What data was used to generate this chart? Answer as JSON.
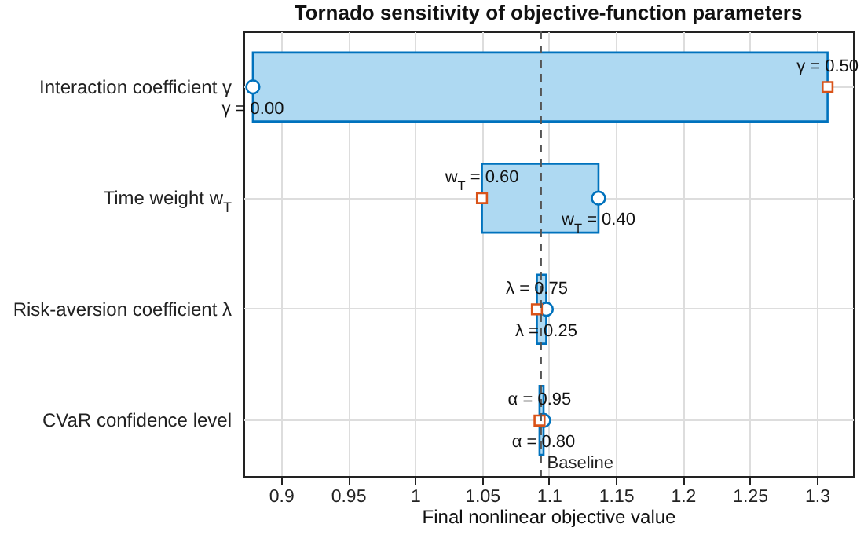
{
  "chart_data": {
    "type": "bar",
    "orientation": "horizontal",
    "title": "Tornado sensitivity of objective-function parameters",
    "xlabel": "Final nonlinear objective value",
    "categories": [
      "Interaction coefficient γ",
      "Time weight w$_{T}$",
      "Risk-aversion coefficient λ",
      "CVaR confidence level"
    ],
    "series": [
      {
        "color": "#aed9f2",
        "base": [
          0.879,
          1.05,
          1.091,
          1.093
        ],
        "values": [
          0.429,
          0.087,
          0.007,
          0.003
        ]
      },
      {
        "type": "scatter",
        "marker": "circle",
        "color": "#0072bd",
        "x": [
          "Interaction coefficient γ",
          "Time weight w$_{T}$",
          "Risk-aversion coefficient λ",
          "CVaR confidence level"
        ],
        "values": [
          0.879,
          1.137,
          1.098,
          1.096
        ]
      },
      {
        "type": "scatter",
        "marker": "square",
        "color": "#d95319",
        "x": [
          "Interaction coefficient γ",
          "Time weight w$_{T}$",
          "Risk-aversion coefficient λ",
          "CVaR confidence level"
        ],
        "values": [
          1.308,
          1.05,
          1.091,
          1.093
        ]
      }
    ],
    "xlim": [
      0.872,
      1.327
    ],
    "xticks": [
      0.9,
      0.95,
      1,
      1.05,
      1.1,
      1.15,
      1.2,
      1.25,
      1.3
    ],
    "ref_lines": [
      {
        "axis": "x",
        "value": 1.094,
        "label": "Baseline",
        "color": "#555555",
        "line_style": "dashed"
      }
    ],
    "annotations": [
      {
        "text": "γ = 0.00",
        "x": 0.879,
        "y": "Interaction coefficient γ"
      },
      {
        "text": "γ = 0.50",
        "x": 1.308,
        "y": "Interaction coefficient γ"
      },
      {
        "text": "w$_{T}$ = 0.40",
        "x": 1.137,
        "y": "Time weight w$_{T}$"
      },
      {
        "text": "w$_{T}$ = 0.60",
        "x": 1.05,
        "y": "Time weight w$_{T}$"
      },
      {
        "text": "λ = 0.25",
        "x": 1.098,
        "y": "Risk-aversion coefficient λ"
      },
      {
        "text": "λ = 0.75",
        "x": 1.091,
        "y": "Risk-aversion coefficient λ"
      },
      {
        "text": "α = 0.80",
        "x": 1.096,
        "y": "CVaR confidence level"
      },
      {
        "text": "α = 0.95",
        "x": 1.093,
        "y": "CVaR confidence level"
      }
    ],
    "grid": true
  }
}
